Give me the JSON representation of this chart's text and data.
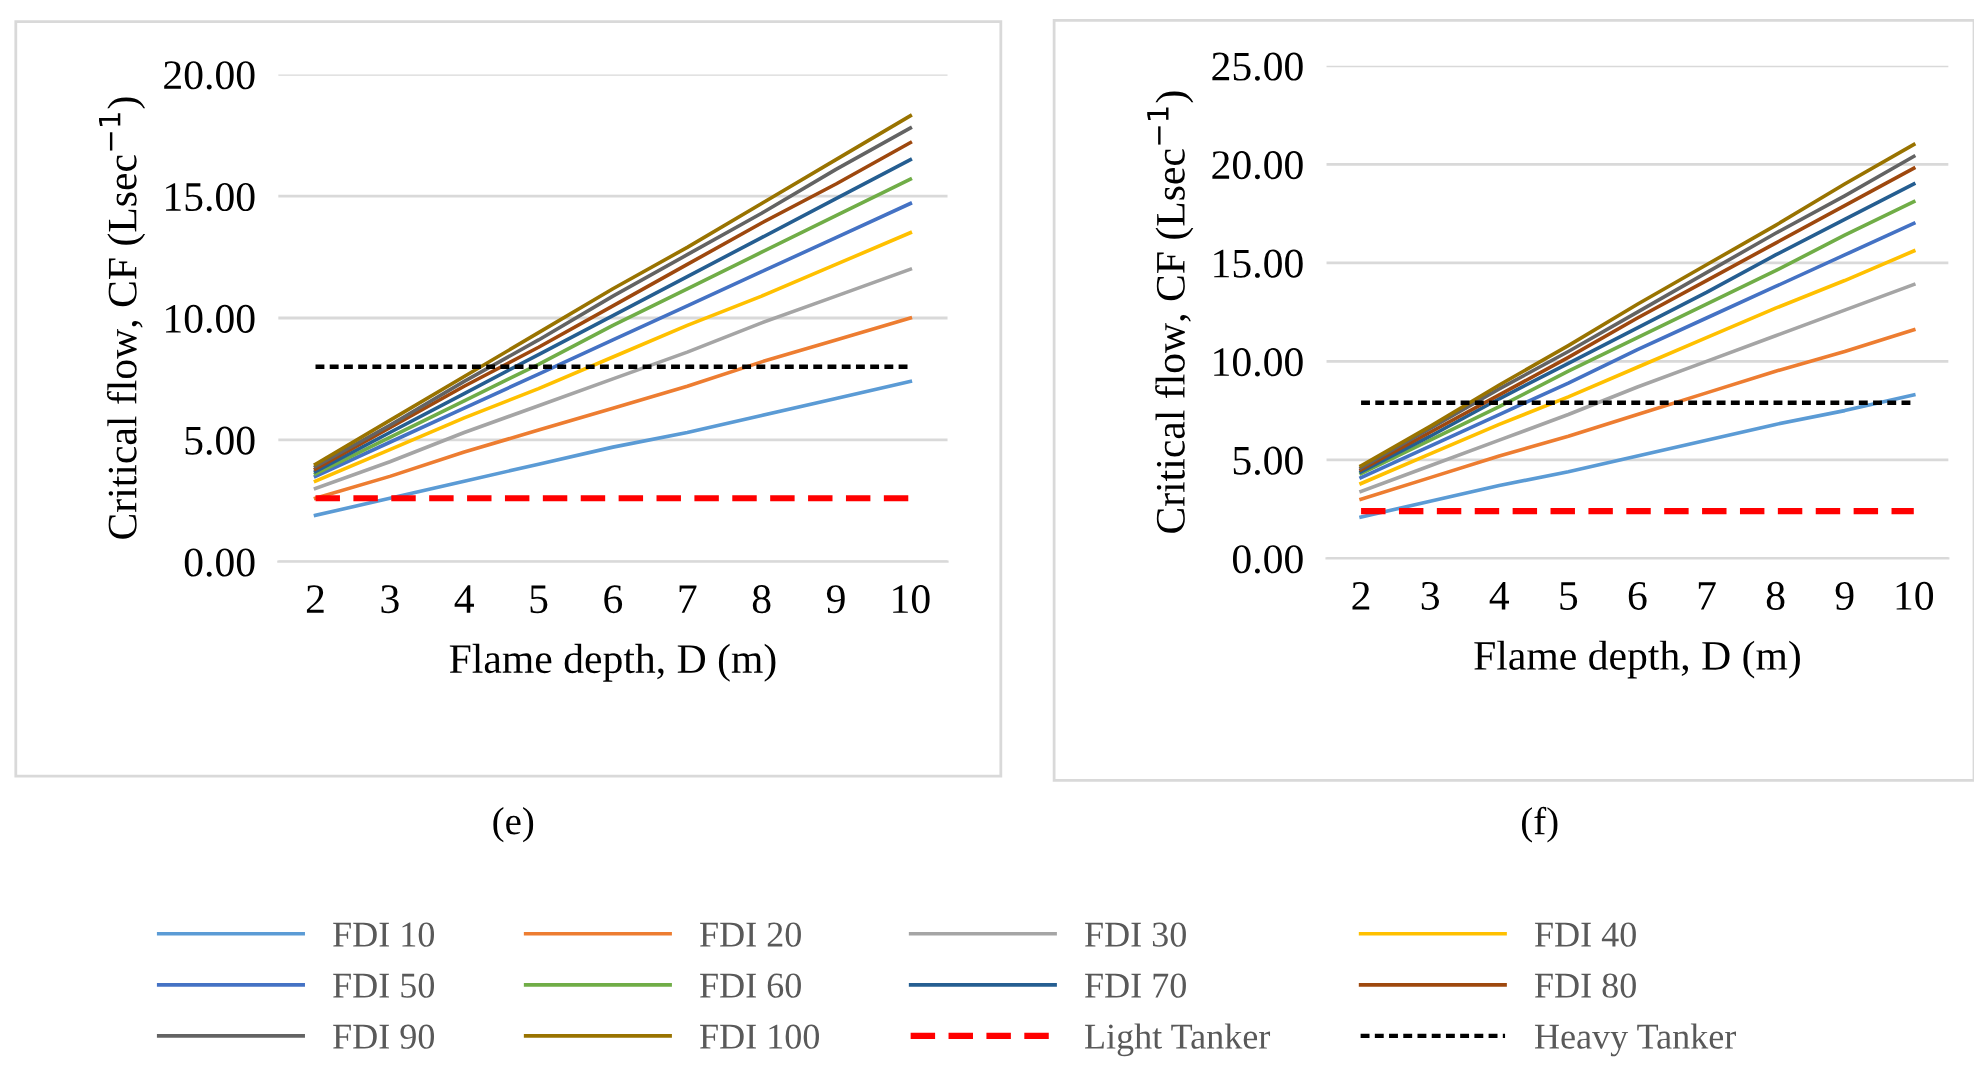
{
  "chart_data": [
    {
      "type": "line",
      "xlabel": "Flame depth, D (m)",
      "ylabel": "Critical flow, CF (Lsec$^{−1}$)",
      "categories": [
        "2",
        "3",
        "4",
        "5",
        "6",
        "7",
        "8",
        "9",
        "10"
      ],
      "ylim": [
        0,
        20
      ],
      "yticks": [
        {
          "value": 0,
          "label": "0.00"
        },
        {
          "value": 5,
          "label": "5.00"
        },
        {
          "value": 10,
          "label": "10.00"
        },
        {
          "value": 15,
          "label": "15.00"
        },
        {
          "value": 20,
          "label": "20.00"
        }
      ],
      "grid": "y",
      "legend": "bottom",
      "annotations": [
        "(e)"
      ],
      "series": [
        {
          "name": "FDI 10",
          "color": "#5b9bd5",
          "values": [
            1.9,
            2.6,
            3.3,
            4.0,
            4.7,
            5.3,
            6.0,
            6.7,
            7.4
          ]
        },
        {
          "name": "FDI 20",
          "color": "#ed7d31",
          "values": [
            2.6,
            3.5,
            4.5,
            5.4,
            6.3,
            7.2,
            8.2,
            9.1,
            10.0
          ]
        },
        {
          "name": "FDI 30",
          "color": "#a5a5a5",
          "values": [
            3.0,
            4.1,
            5.3,
            6.4,
            7.5,
            8.6,
            9.8,
            10.9,
            12.0
          ]
        },
        {
          "name": "FDI 40",
          "color": "#ffc000",
          "values": [
            3.3,
            4.6,
            5.9,
            7.1,
            8.4,
            9.7,
            10.9,
            12.2,
            13.5
          ]
        },
        {
          "name": "FDI 50",
          "color": "#4472c4",
          "values": [
            3.5,
            4.9,
            6.3,
            7.7,
            9.1,
            10.5,
            11.9,
            13.3,
            14.7
          ]
        },
        {
          "name": "FDI 60",
          "color": "#70ad47",
          "values": [
            3.6,
            5.1,
            6.6,
            8.1,
            9.7,
            11.2,
            12.7,
            14.2,
            15.7
          ]
        },
        {
          "name": "FDI 70",
          "color": "#255e91",
          "values": [
            3.7,
            5.3,
            6.9,
            8.5,
            10.1,
            11.7,
            13.3,
            14.9,
            16.5
          ]
        },
        {
          "name": "FDI 80",
          "color": "#9e480e",
          "values": [
            3.8,
            5.5,
            7.2,
            8.8,
            10.5,
            12.2,
            13.9,
            15.5,
            17.2
          ]
        },
        {
          "name": "FDI 90",
          "color": "#636363",
          "values": [
            3.9,
            5.6,
            7.4,
            9.1,
            10.9,
            12.6,
            14.3,
            16.1,
            17.8
          ]
        },
        {
          "name": "FDI 100",
          "color": "#997300",
          "values": [
            4.0,
            5.8,
            7.6,
            9.4,
            11.2,
            12.9,
            14.7,
            16.5,
            18.3
          ]
        },
        {
          "name": "Light Tanker",
          "color": "#ff0000",
          "line_style": "dashed",
          "values": [
            2.6,
            2.6,
            2.6,
            2.6,
            2.6,
            2.6,
            2.6,
            2.6,
            2.6
          ]
        },
        {
          "name": "Heavy Tanker",
          "color": "#000000",
          "line_style": "dotted",
          "values": [
            8.0,
            8.0,
            8.0,
            8.0,
            8.0,
            8.0,
            8.0,
            8.0,
            8.0
          ]
        }
      ]
    },
    {
      "type": "line",
      "xlabel": "Flame depth, D (m)",
      "ylabel": "Critical flow, CF (Lsec$^{−1}$)",
      "categories": [
        "2",
        "3",
        "4",
        "5",
        "6",
        "7",
        "8",
        "9",
        "10"
      ],
      "ylim": [
        0,
        25
      ],
      "yticks": [
        {
          "value": 0,
          "label": "0.00"
        },
        {
          "value": 5,
          "label": "5.00"
        },
        {
          "value": 10,
          "label": "10.00"
        },
        {
          "value": 15,
          "label": "15.00"
        },
        {
          "value": 20,
          "label": "20.00"
        },
        {
          "value": 25,
          "label": "25.00"
        }
      ],
      "grid": "y",
      "annotations": [
        "(f)"
      ],
      "series": [
        {
          "color": "#5b9bd5",
          "values": [
            2.1,
            2.9,
            3.7,
            4.4,
            5.2,
            6.0,
            6.8,
            7.5,
            8.3
          ]
        },
        {
          "color": "#ed7d31",
          "values": [
            3.0,
            4.1,
            5.2,
            6.2,
            7.3,
            8.4,
            9.5,
            10.5,
            11.6
          ]
        },
        {
          "color": "#a5a5a5",
          "values": [
            3.4,
            4.7,
            6.0,
            7.3,
            8.7,
            10.0,
            11.3,
            12.6,
            13.9
          ]
        },
        {
          "color": "#ffc000",
          "values": [
            3.8,
            5.3,
            6.8,
            8.2,
            9.7,
            11.2,
            12.7,
            14.1,
            15.6
          ]
        },
        {
          "color": "#4472c4",
          "values": [
            4.1,
            5.7,
            7.3,
            8.9,
            10.6,
            12.2,
            13.8,
            15.4,
            17.0
          ]
        },
        {
          "color": "#70ad47",
          "values": [
            4.3,
            6.0,
            7.7,
            9.5,
            11.2,
            12.9,
            14.6,
            16.4,
            18.1
          ]
        },
        {
          "color": "#255e91",
          "values": [
            4.4,
            6.2,
            8.1,
            9.9,
            11.7,
            13.5,
            15.4,
            17.2,
            19.0
          ]
        },
        {
          "color": "#9e480e",
          "values": [
            4.5,
            6.4,
            8.3,
            10.2,
            12.2,
            14.1,
            16.0,
            17.9,
            19.8
          ]
        },
        {
          "color": "#636363",
          "values": [
            4.6,
            6.6,
            8.6,
            10.5,
            12.5,
            14.5,
            16.5,
            18.4,
            20.4
          ]
        },
        {
          "color": "#997300",
          "values": [
            4.7,
            6.7,
            8.8,
            10.8,
            12.9,
            14.9,
            16.9,
            19.0,
            21.0
          ]
        },
        {
          "color": "#ff0000",
          "line_style": "dashed",
          "values": [
            2.4,
            2.4,
            2.4,
            2.4,
            2.4,
            2.4,
            2.4,
            2.4,
            2.4
          ]
        },
        {
          "color": "#000000",
          "line_style": "dotted",
          "values": [
            7.9,
            7.9,
            7.9,
            7.9,
            7.9,
            7.9,
            7.9,
            7.9,
            7.9
          ]
        }
      ]
    }
  ]
}
